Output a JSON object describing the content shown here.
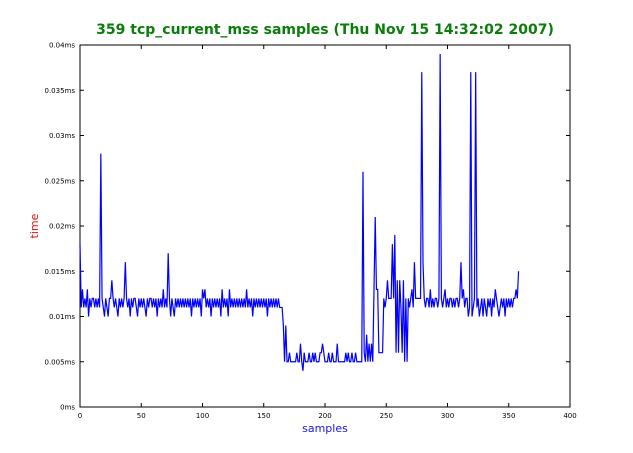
{
  "colors": {
    "title": "#0a7d0a",
    "xlabel": "#1414ff",
    "ylabel": "#e01010",
    "series": "#0000ff",
    "frame": "#000000"
  },
  "chart_data": {
    "type": "line",
    "title": "359 tcp_current_mss samples (Thu Nov 15 14:32:02 2007)",
    "xlabel": "samples",
    "ylabel": "time",
    "xlim": [
      0,
      400
    ],
    "ylim": [
      0,
      0.04
    ],
    "x_ticks": [
      0,
      50,
      100,
      150,
      200,
      250,
      300,
      350,
      400
    ],
    "x_tick_labels": [
      "0",
      "50",
      "100",
      "150",
      "200",
      "250",
      "300",
      "350",
      "400"
    ],
    "y_ticks": [
      0,
      0.005,
      0.01,
      0.015,
      0.02,
      0.025,
      0.03,
      0.035,
      0.04
    ],
    "y_tick_labels": [
      "0ms",
      "0.005ms",
      "0.01ms",
      "0.015ms",
      "0.02ms",
      "0.025ms",
      "0.03ms",
      "0.035ms",
      "0.04ms"
    ],
    "grid": false,
    "series": [
      {
        "values": [
          0.018,
          0.011,
          0.013,
          0.011,
          0.012,
          0.011,
          0.013,
          0.01,
          0.012,
          0.011,
          0.012,
          0.012,
          0.011,
          0.012,
          0.011,
          0.012,
          0.011,
          0.028,
          0.012,
          0.011,
          0.01,
          0.012,
          0.011,
          0.01,
          0.012,
          0.012,
          0.014,
          0.012,
          0.011,
          0.012,
          0.011,
          0.01,
          0.012,
          0.011,
          0.012,
          0.011,
          0.012,
          0.016,
          0.012,
          0.011,
          0.012,
          0.01,
          0.012,
          0.011,
          0.012,
          0.012,
          0.011,
          0.01,
          0.012,
          0.011,
          0.012,
          0.011,
          0.012,
          0.011,
          0.01,
          0.012,
          0.011,
          0.012,
          0.012,
          0.011,
          0.012,
          0.011,
          0.012,
          0.01,
          0.012,
          0.011,
          0.012,
          0.011,
          0.013,
          0.011,
          0.012,
          0.011,
          0.017,
          0.012,
          0.01,
          0.012,
          0.011,
          0.01,
          0.012,
          0.011,
          0.012,
          0.011,
          0.012,
          0.011,
          0.012,
          0.011,
          0.012,
          0.011,
          0.012,
          0.011,
          0.012,
          0.01,
          0.012,
          0.011,
          0.012,
          0.011,
          0.012,
          0.011,
          0.012,
          0.01,
          0.013,
          0.012,
          0.013,
          0.011,
          0.012,
          0.011,
          0.012,
          0.01,
          0.012,
          0.011,
          0.012,
          0.011,
          0.012,
          0.011,
          0.012,
          0.01,
          0.013,
          0.011,
          0.012,
          0.011,
          0.012,
          0.01,
          0.013,
          0.011,
          0.012,
          0.011,
          0.012,
          0.011,
          0.012,
          0.011,
          0.012,
          0.011,
          0.012,
          0.011,
          0.012,
          0.011,
          0.013,
          0.011,
          0.012,
          0.011,
          0.012,
          0.01,
          0.012,
          0.011,
          0.012,
          0.011,
          0.012,
          0.011,
          0.012,
          0.011,
          0.012,
          0.011,
          0.012,
          0.01,
          0.012,
          0.011,
          0.012,
          0.011,
          0.012,
          0.011,
          0.012,
          0.011,
          0.012,
          0.011,
          0.011,
          0.011,
          0.009,
          0.005,
          0.009,
          0.005,
          0.005,
          0.006,
          0.005,
          0.005,
          0.005,
          0.005,
          0.005,
          0.006,
          0.005,
          0.005,
          0.007,
          0.005,
          0.004,
          0.006,
          0.005,
          0.005,
          0.005,
          0.006,
          0.005,
          0.005,
          0.006,
          0.005,
          0.006,
          0.005,
          0.005,
          0.005,
          0.006,
          0.006,
          0.007,
          0.006,
          0.005,
          0.005,
          0.005,
          0.006,
          0.005,
          0.005,
          0.006,
          0.005,
          0.005,
          0.005,
          0.007,
          0.005,
          0.005,
          0.005,
          0.005,
          0.005,
          0.005,
          0.006,
          0.005,
          0.006,
          0.005,
          0.005,
          0.006,
          0.005,
          0.005,
          0.006,
          0.005,
          0.005,
          0.005,
          0.005,
          0.005,
          0.026,
          0.006,
          0.005,
          0.008,
          0.005,
          0.007,
          0.005,
          0.007,
          0.005,
          0.013,
          0.021,
          0.013,
          0.013,
          0.006,
          0.006,
          0.006,
          0.006,
          0.012,
          0.011,
          0.012,
          0.014,
          0.012,
          0.012,
          0.012,
          0.018,
          0.012,
          0.019,
          0.006,
          0.014,
          0.006,
          0.014,
          0.011,
          0.006,
          0.014,
          0.005,
          0.012,
          0.005,
          0.012,
          0.011,
          0.012,
          0.013,
          0.011,
          0.016,
          0.012,
          0.012,
          0.012,
          0.012,
          0.012,
          0.037,
          0.016,
          0.012,
          0.011,
          0.012,
          0.012,
          0.011,
          0.013,
          0.011,
          0.012,
          0.011,
          0.012,
          0.012,
          0.011,
          0.012,
          0.039,
          0.012,
          0.011,
          0.012,
          0.013,
          0.011,
          0.012,
          0.011,
          0.012,
          0.012,
          0.011,
          0.012,
          0.011,
          0.012,
          0.012,
          0.011,
          0.012,
          0.016,
          0.012,
          0.013,
          0.011,
          0.012,
          0.012,
          0.01,
          0.011,
          0.037,
          0.01,
          0.011,
          0.012,
          0.037,
          0.011,
          0.012,
          0.01,
          0.011,
          0.012,
          0.01,
          0.012,
          0.011,
          0.01,
          0.012,
          0.011,
          0.012,
          0.01,
          0.012,
          0.011,
          0.013,
          0.012,
          0.011,
          0.01,
          0.011,
          0.012,
          0.011,
          0.012,
          0.01,
          0.012,
          0.011,
          0.012,
          0.011,
          0.012,
          0.011,
          0.012,
          0.012,
          0.013,
          0.012,
          0.015
        ]
      }
    ]
  }
}
